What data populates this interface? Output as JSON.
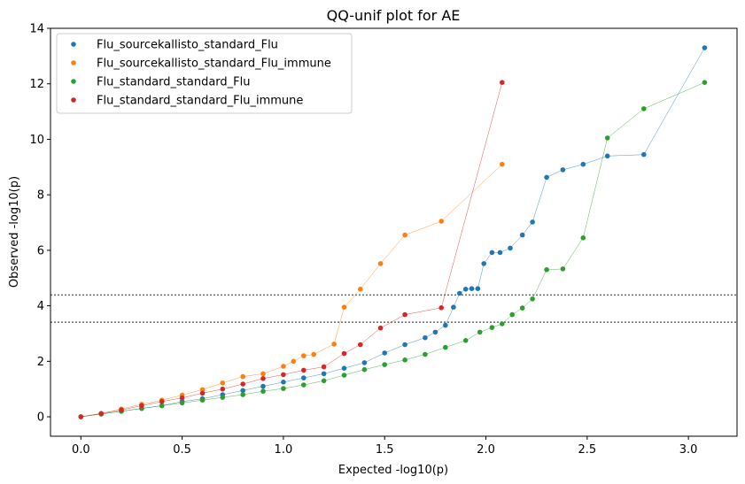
{
  "chart_data": {
    "type": "scatter",
    "title": "QQ-unif plot for AE",
    "xlabel": "Expected -log10(p)",
    "ylabel": "Observed -log10(p)",
    "xlim": [
      -0.15,
      3.24
    ],
    "ylim": [
      -0.7,
      14.0
    ],
    "xticks": [
      0.0,
      0.5,
      1.0,
      1.5,
      2.0,
      2.5,
      3.0
    ],
    "xtick_labels": [
      "0.0",
      "0.5",
      "1.0",
      "1.5",
      "2.0",
      "2.5",
      "3.0"
    ],
    "yticks": [
      0,
      2,
      4,
      6,
      8,
      10,
      12,
      14
    ],
    "ytick_labels": [
      "0",
      "2",
      "4",
      "6",
      "8",
      "10",
      "12",
      "14"
    ],
    "grid": false,
    "legend_position": "top-left",
    "threshold_lines": [
      4.39,
      3.41
    ],
    "series": [
      {
        "name": "Flu_sourcekallisto_standard_Flu",
        "color": "#1f77b4",
        "points": [
          [
            0.0,
            0.0
          ],
          [
            0.1,
            0.1
          ],
          [
            0.2,
            0.2
          ],
          [
            0.3,
            0.3
          ],
          [
            0.4,
            0.4
          ],
          [
            0.5,
            0.55
          ],
          [
            0.6,
            0.65
          ],
          [
            0.7,
            0.8
          ],
          [
            0.8,
            0.95
          ],
          [
            0.9,
            1.1
          ],
          [
            1.0,
            1.25
          ],
          [
            1.1,
            1.4
          ],
          [
            1.2,
            1.55
          ],
          [
            1.3,
            1.75
          ],
          [
            1.4,
            1.95
          ],
          [
            1.5,
            2.3
          ],
          [
            1.6,
            2.6
          ],
          [
            1.7,
            2.85
          ],
          [
            1.75,
            3.05
          ],
          [
            1.8,
            3.3
          ],
          [
            1.84,
            3.95
          ],
          [
            1.87,
            4.45
          ],
          [
            1.9,
            4.6
          ],
          [
            1.93,
            4.62
          ],
          [
            1.96,
            4.62
          ],
          [
            1.99,
            5.52
          ],
          [
            2.03,
            5.92
          ],
          [
            2.07,
            5.92
          ],
          [
            2.12,
            6.08
          ],
          [
            2.18,
            6.55
          ],
          [
            2.23,
            7.02
          ],
          [
            2.3,
            8.63
          ],
          [
            2.38,
            8.9
          ],
          [
            2.48,
            9.1
          ],
          [
            2.6,
            9.4
          ],
          [
            2.78,
            9.45
          ],
          [
            3.08,
            13.3
          ]
        ]
      },
      {
        "name": "Flu_sourcekallisto_standard_Flu_immune",
        "color": "#ff7f0e",
        "points": [
          [
            0.0,
            0.0
          ],
          [
            0.1,
            0.12
          ],
          [
            0.2,
            0.28
          ],
          [
            0.3,
            0.45
          ],
          [
            0.4,
            0.6
          ],
          [
            0.5,
            0.78
          ],
          [
            0.6,
            0.98
          ],
          [
            0.7,
            1.22
          ],
          [
            0.8,
            1.45
          ],
          [
            0.9,
            1.55
          ],
          [
            1.0,
            1.82
          ],
          [
            1.05,
            2.0
          ],
          [
            1.1,
            2.2
          ],
          [
            1.15,
            2.25
          ],
          [
            1.25,
            2.62
          ],
          [
            1.3,
            3.95
          ],
          [
            1.38,
            4.6
          ],
          [
            1.48,
            5.52
          ],
          [
            1.6,
            6.55
          ],
          [
            1.78,
            7.05
          ],
          [
            2.08,
            9.1
          ]
        ]
      },
      {
        "name": "Flu_standard_standard_Flu",
        "color": "#2ca02c",
        "points": [
          [
            0.0,
            0.0
          ],
          [
            0.1,
            0.1
          ],
          [
            0.2,
            0.2
          ],
          [
            0.3,
            0.3
          ],
          [
            0.4,
            0.4
          ],
          [
            0.5,
            0.5
          ],
          [
            0.6,
            0.6
          ],
          [
            0.7,
            0.7
          ],
          [
            0.8,
            0.8
          ],
          [
            0.9,
            0.92
          ],
          [
            1.0,
            1.02
          ],
          [
            1.1,
            1.15
          ],
          [
            1.2,
            1.3
          ],
          [
            1.3,
            1.5
          ],
          [
            1.4,
            1.7
          ],
          [
            1.5,
            1.88
          ],
          [
            1.6,
            2.05
          ],
          [
            1.7,
            2.25
          ],
          [
            1.8,
            2.5
          ],
          [
            1.9,
            2.75
          ],
          [
            1.97,
            3.05
          ],
          [
            2.03,
            3.22
          ],
          [
            2.08,
            3.35
          ],
          [
            2.13,
            3.68
          ],
          [
            2.18,
            3.92
          ],
          [
            2.23,
            4.25
          ],
          [
            2.3,
            5.3
          ],
          [
            2.38,
            5.33
          ],
          [
            2.48,
            6.45
          ],
          [
            2.6,
            10.05
          ],
          [
            2.78,
            11.1
          ],
          [
            3.08,
            12.05
          ]
        ]
      },
      {
        "name": "Flu_standard_standard_Flu_immune",
        "color": "#d62728",
        "points": [
          [
            0.0,
            0.0
          ],
          [
            0.1,
            0.12
          ],
          [
            0.2,
            0.25
          ],
          [
            0.3,
            0.4
          ],
          [
            0.4,
            0.55
          ],
          [
            0.5,
            0.68
          ],
          [
            0.6,
            0.85
          ],
          [
            0.7,
            1.0
          ],
          [
            0.8,
            1.18
          ],
          [
            0.9,
            1.38
          ],
          [
            1.0,
            1.52
          ],
          [
            1.1,
            1.68
          ],
          [
            1.2,
            1.8
          ],
          [
            1.3,
            2.28
          ],
          [
            1.38,
            2.6
          ],
          [
            1.48,
            3.2
          ],
          [
            1.6,
            3.68
          ],
          [
            1.78,
            3.93
          ],
          [
            2.08,
            12.05
          ]
        ]
      }
    ]
  }
}
